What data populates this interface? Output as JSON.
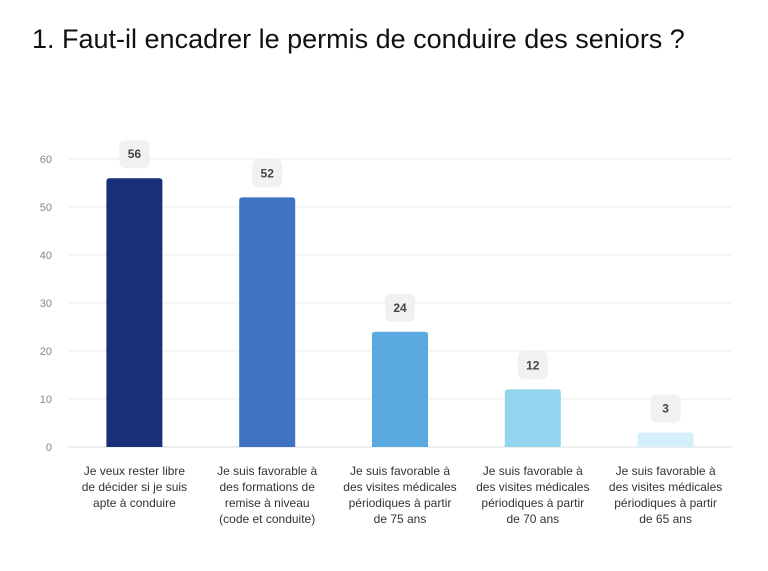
{
  "chart_data": {
    "type": "bar",
    "title": "1. Faut-il encadrer le permis de conduire des seniors ?",
    "categories": [
      [
        "Je veux rester libre",
        "de décider si je suis",
        "apte à conduire"
      ],
      [
        "Je suis favorable à",
        "des formations de",
        "remise à niveau",
        "(code et conduite)"
      ],
      [
        "Je suis favorable à",
        "des visites médicales",
        "périodiques à partir",
        "de 75 ans"
      ],
      [
        "Je suis favorable à",
        "des visites médicales",
        "périodiques à partir",
        "de 70 ans"
      ],
      [
        "Je suis favorable à",
        "des visites médicales",
        "périodiques à partir",
        "de 65 ans"
      ]
    ],
    "values": [
      56,
      52,
      24,
      12,
      3
    ],
    "colors": [
      "#1a2f7a",
      "#3f72c0",
      "#5aa9e0",
      "#93d4ee",
      "#d6eefa"
    ],
    "ylim": [
      0,
      60
    ],
    "yticks": [
      0,
      10,
      20,
      30,
      40,
      50,
      60
    ],
    "grid": true,
    "data_labels": true,
    "xlabel": "",
    "ylabel": ""
  }
}
